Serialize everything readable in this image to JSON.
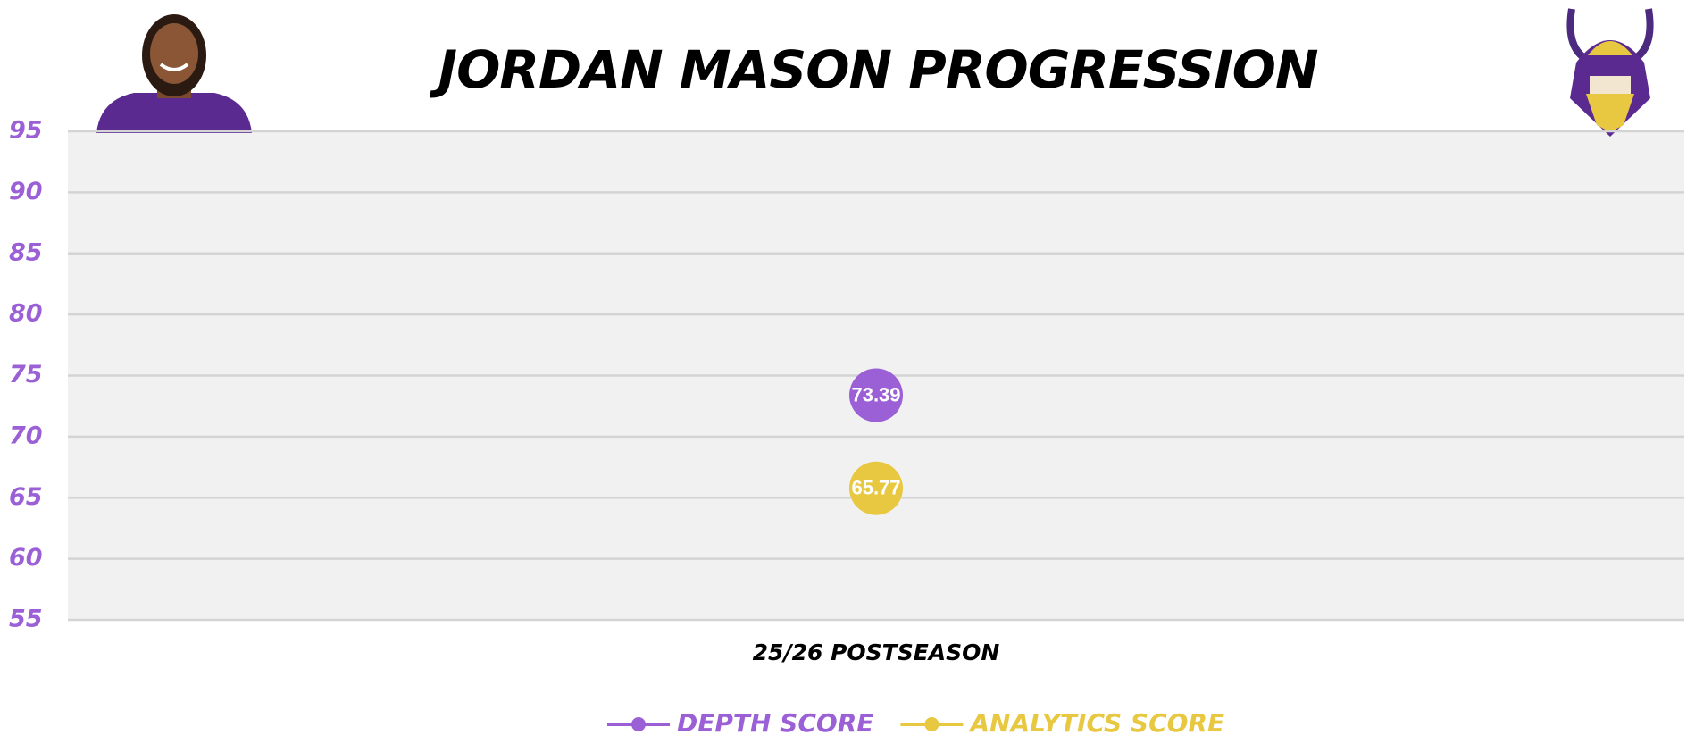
{
  "chart_data": {
    "type": "line",
    "title": "JORDAN MASON PROGRESSION",
    "categories": [
      "25/26 POSTSEASON"
    ],
    "series": [
      {
        "name": "DEPTH SCORE",
        "color": "#9b5fd6",
        "values": [
          73.39
        ]
      },
      {
        "name": "ANALYTICS SCORE",
        "color": "#e8c840",
        "values": [
          65.77
        ]
      }
    ],
    "ylim": [
      55,
      95
    ],
    "yticks": [
      55,
      60,
      65,
      70,
      75,
      80,
      85,
      90,
      95
    ],
    "grid": true,
    "tick_color": "#9b5fd6",
    "legend": "bottom"
  }
}
